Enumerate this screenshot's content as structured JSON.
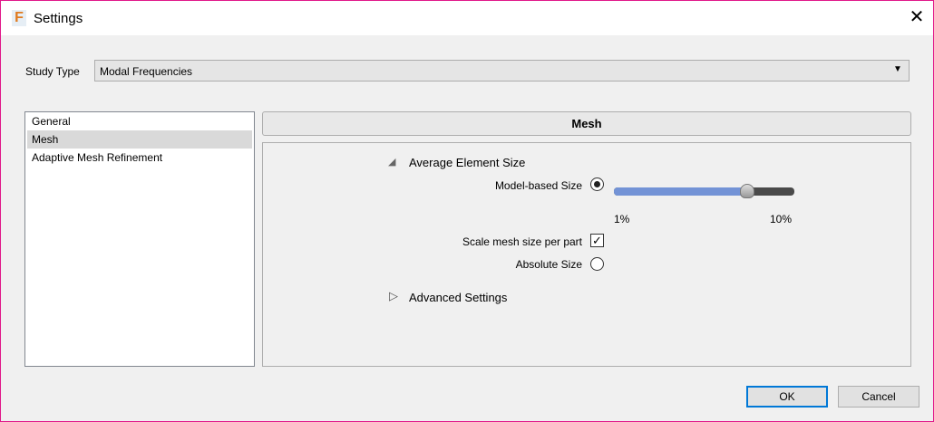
{
  "window": {
    "title": "Settings",
    "logo": "F"
  },
  "study_type": {
    "label": "Study Type",
    "value": "Modal Frequencies"
  },
  "nav": {
    "items": [
      {
        "label": "General"
      },
      {
        "label": "Mesh",
        "selected": true
      },
      {
        "label": "Adaptive Mesh Refinement"
      }
    ]
  },
  "mesh": {
    "header": "Mesh",
    "average_element_size": "Average Element Size",
    "model_based_size": "Model-based Size",
    "slider": {
      "min_label": "1%",
      "max_label": "10%",
      "value_fraction": 0.74,
      "fill_color": "#7393d6"
    },
    "scale_per_part": "Scale mesh size per part",
    "absolute_size": "Absolute Size",
    "advanced_settings": "Advanced Settings"
  },
  "buttons": {
    "ok": "OK",
    "cancel": "Cancel"
  }
}
